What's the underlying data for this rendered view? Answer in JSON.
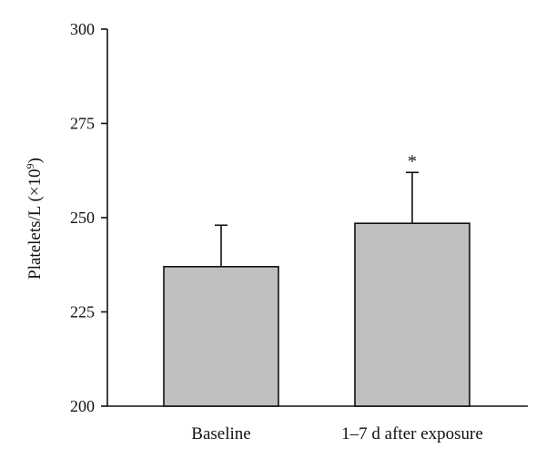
{
  "chart_data": {
    "type": "bar",
    "categories": [
      "Baseline",
      "1–7 d after exposure"
    ],
    "values": [
      237,
      248.5
    ],
    "error_upper": [
      248,
      262
    ],
    "annotations": [
      "",
      "*"
    ],
    "ylabel_main": "Platelets/L (×10",
    "ylabel_exponent": "9",
    "ylabel_close": ")",
    "ylim": [
      200,
      300
    ],
    "yticks": [
      200,
      225,
      250,
      275,
      300
    ],
    "grid": false,
    "bar_color": "#c0c0c0",
    "edge_color": "#111111"
  }
}
